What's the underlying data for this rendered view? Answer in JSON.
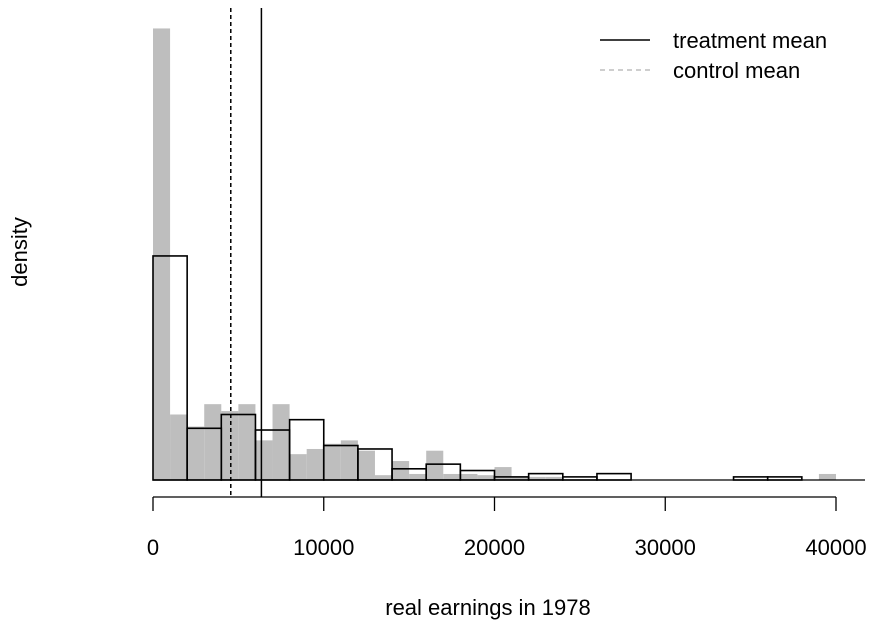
{
  "chart_data": {
    "type": "bar",
    "xlabel": "real earnings in 1978",
    "ylabel": "density",
    "xlim": [
      0,
      41500
    ],
    "ylim": [
      0,
      0.000264
    ],
    "x_ticks": [
      0,
      10000,
      20000,
      30000,
      40000
    ],
    "x_tick_labels": [
      "0",
      "10000",
      "20000",
      "30000",
      "40000"
    ],
    "grid": false,
    "legend_position": "top-right",
    "series": [
      {
        "name": "control",
        "style": "filled",
        "color": "#bebebe",
        "bin_width": 1000,
        "bins": [
          {
            "x0": 0,
            "x1": 1000,
            "density": 0.000262
          },
          {
            "x0": 1000,
            "x1": 2000,
            "density": 3.8e-05
          },
          {
            "x0": 2000,
            "x1": 3000,
            "density": 3.1e-05
          },
          {
            "x0": 3000,
            "x1": 4000,
            "density": 4.4e-05
          },
          {
            "x0": 4000,
            "x1": 5000,
            "density": 4e-05
          },
          {
            "x0": 5000,
            "x1": 6000,
            "density": 4.4e-05
          },
          {
            "x0": 6000,
            "x1": 7000,
            "density": 2.3e-05
          },
          {
            "x0": 7000,
            "x1": 8000,
            "density": 4.4e-05
          },
          {
            "x0": 8000,
            "x1": 9000,
            "density": 1.5e-05
          },
          {
            "x0": 9000,
            "x1": 10000,
            "density": 1.8e-05
          },
          {
            "x0": 10000,
            "x1": 11000,
            "density": 2.1e-05
          },
          {
            "x0": 11000,
            "x1": 12000,
            "density": 2.3e-05
          },
          {
            "x0": 12000,
            "x1": 13000,
            "density": 1.7e-05
          },
          {
            "x0": 13000,
            "x1": 14000,
            "density": 2.8e-06
          },
          {
            "x0": 14000,
            "x1": 15000,
            "density": 1.1e-05
          },
          {
            "x0": 15000,
            "x1": 16000,
            "density": 3.5e-06
          },
          {
            "x0": 16000,
            "x1": 17000,
            "density": 1.7e-05
          },
          {
            "x0": 17000,
            "x1": 18000,
            "density": 3.5e-06
          },
          {
            "x0": 18000,
            "x1": 19000,
            "density": 3.5e-06
          },
          {
            "x0": 19000,
            "x1": 20000,
            "density": 2.8e-06
          },
          {
            "x0": 20000,
            "x1": 21000,
            "density": 7.5e-06
          },
          {
            "x0": 21000,
            "x1": 22000,
            "density": 1.8e-06
          },
          {
            "x0": 22000,
            "x1": 23000,
            "density": 1.8e-06
          },
          {
            "x0": 23000,
            "x1": 24000,
            "density": 1.8e-06
          },
          {
            "x0": 39000,
            "x1": 40000,
            "density": 3.5e-06
          }
        ]
      },
      {
        "name": "treatment",
        "style": "outline",
        "color": "#000000",
        "bin_width": 2000,
        "bins": [
          {
            "x0": 0,
            "x1": 2000,
            "density": 0.00013
          },
          {
            "x0": 2000,
            "x1": 4000,
            "density": 3e-05
          },
          {
            "x0": 4000,
            "x1": 6000,
            "density": 3.8e-05
          },
          {
            "x0": 6000,
            "x1": 8000,
            "density": 2.9e-05
          },
          {
            "x0": 8000,
            "x1": 10000,
            "density": 3.5e-05
          },
          {
            "x0": 10000,
            "x1": 12000,
            "density": 2e-05
          },
          {
            "x0": 12000,
            "x1": 14000,
            "density": 1.8e-05
          },
          {
            "x0": 14000,
            "x1": 16000,
            "density": 6.5e-06
          },
          {
            "x0": 16000,
            "x1": 18000,
            "density": 9.2e-06
          },
          {
            "x0": 18000,
            "x1": 20000,
            "density": 5.5e-06
          },
          {
            "x0": 20000,
            "x1": 22000,
            "density": 1.8e-06
          },
          {
            "x0": 22000,
            "x1": 24000,
            "density": 3.7e-06
          },
          {
            "x0": 24000,
            "x1": 26000,
            "density": 1.8e-06
          },
          {
            "x0": 26000,
            "x1": 28000,
            "density": 3.7e-06
          },
          {
            "x0": 34000,
            "x1": 36000,
            "density": 1.8e-06
          },
          {
            "x0": 36000,
            "x1": 38000,
            "density": 1.8e-06
          }
        ]
      }
    ],
    "reference_lines": [
      {
        "name": "treatment mean",
        "x": 6349,
        "style": "solid",
        "color": "#000000"
      },
      {
        "name": "control mean",
        "x": 4555,
        "style": "dashed",
        "color": "#000000"
      }
    ],
    "legend": [
      {
        "label": "treatment mean",
        "style": "solid",
        "color": "#000000"
      },
      {
        "label": "control mean",
        "style": "dashed",
        "color": "#bebebe"
      }
    ]
  }
}
